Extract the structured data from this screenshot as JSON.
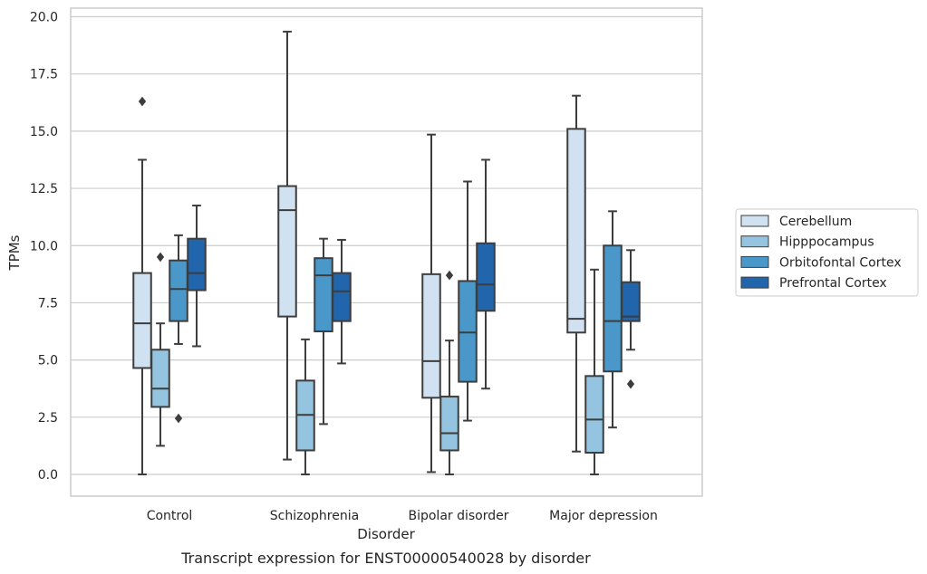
{
  "caption": "Transcript expression for ENST00000540028 by disorder",
  "chart_data": {
    "type": "box",
    "title": "",
    "xlabel": "Disorder",
    "ylabel": "TPMs",
    "ylim": [
      -0.9,
      20.3
    ],
    "yticks": [
      "0.0",
      "2.5",
      "5.0",
      "7.5",
      "10.0",
      "12.5",
      "15.0",
      "17.5",
      "20.0"
    ],
    "ytick_values": [
      0,
      2.5,
      5,
      7.5,
      10,
      12.5,
      15,
      17.5,
      20
    ],
    "grid": "horizontal",
    "legend_position": "right",
    "categories": [
      "Control",
      "Schizophrenia",
      "Bipolar disorder",
      "Major depression"
    ],
    "series": [
      {
        "name": "Cerebellum",
        "color": "#d0e1f2",
        "boxes": [
          {
            "min": 0.0,
            "q1": 4.65,
            "median": 6.6,
            "q3": 8.8,
            "max": 13.75,
            "outliers": [
              16.3
            ]
          },
          {
            "min": 0.65,
            "q1": 6.9,
            "median": 11.55,
            "q3": 12.6,
            "max": 19.35,
            "outliers": []
          },
          {
            "min": 0.1,
            "q1": 3.35,
            "median": 4.95,
            "q3": 8.75,
            "max": 14.85,
            "outliers": []
          },
          {
            "min": 1.0,
            "q1": 6.2,
            "median": 6.8,
            "q3": 15.1,
            "max": 16.55,
            "outliers": []
          }
        ]
      },
      {
        "name": "Hipppocampus",
        "color": "#94c4df",
        "boxes": [
          {
            "min": 1.25,
            "q1": 2.95,
            "median": 3.75,
            "q3": 5.45,
            "max": 6.6,
            "outliers": [
              9.5
            ]
          },
          {
            "min": 0.0,
            "q1": 1.05,
            "median": 2.6,
            "q3": 4.1,
            "max": 5.9,
            "outliers": []
          },
          {
            "min": 0.0,
            "q1": 1.05,
            "median": 1.8,
            "q3": 3.4,
            "max": 5.85,
            "outliers": [
              8.7
            ]
          },
          {
            "min": 0.0,
            "q1": 0.95,
            "median": 2.4,
            "q3": 4.3,
            "max": 8.95,
            "outliers": []
          }
        ]
      },
      {
        "name": "Orbitofontal Cortex",
        "color": "#4a98c9",
        "boxes": [
          {
            "min": 5.7,
            "q1": 6.7,
            "median": 8.1,
            "q3": 9.35,
            "max": 10.45,
            "outliers": [
              2.45
            ]
          },
          {
            "min": 2.2,
            "q1": 6.25,
            "median": 8.7,
            "q3": 9.45,
            "max": 10.3,
            "outliers": []
          },
          {
            "min": 2.35,
            "q1": 4.05,
            "median": 6.2,
            "q3": 8.45,
            "max": 12.8,
            "outliers": []
          },
          {
            "min": 2.05,
            "q1": 4.5,
            "median": 6.7,
            "q3": 10.0,
            "max": 11.5,
            "outliers": []
          }
        ]
      },
      {
        "name": "Prefrontal Cortex",
        "color": "#2166ac",
        "boxes": [
          {
            "min": 5.6,
            "q1": 8.05,
            "median": 8.8,
            "q3": 10.3,
            "max": 11.75,
            "outliers": []
          },
          {
            "min": 4.85,
            "q1": 6.7,
            "median": 8.0,
            "q3": 8.8,
            "max": 10.25,
            "outliers": []
          },
          {
            "min": 3.75,
            "q1": 7.15,
            "median": 8.3,
            "q3": 10.1,
            "max": 13.75,
            "outliers": []
          },
          {
            "min": 5.45,
            "q1": 6.7,
            "median": 6.9,
            "q3": 8.4,
            "max": 9.8,
            "outliers": [
              3.95
            ]
          }
        ]
      }
    ]
  }
}
